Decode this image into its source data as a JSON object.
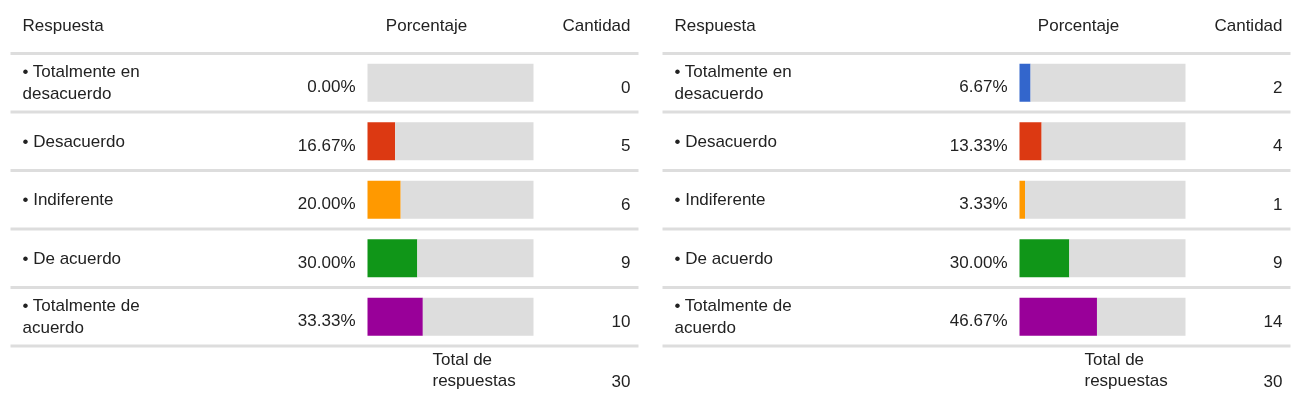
{
  "chart_data": [
    {
      "type": "bar",
      "orientation": "horizontal",
      "stacked": true,
      "ylabel": "Respuesta",
      "xlabel": "Porcentaje",
      "xlim": [
        0,
        100
      ],
      "tick_labels": false,
      "categories": [
        "• Totalmente en desacuerdo",
        "• Desacuerdo",
        "• Indiferente",
        "• De acuerdo",
        "• Totalmente de acuerdo"
      ],
      "series": [
        {
          "colors": [
            "#3366cc",
            "#dc3912",
            "#ff9900",
            "#109618",
            "#990099"
          ],
          "values": [
            0,
            16.67,
            20,
            30,
            33.33
          ],
          "value_labels": [
            "0.00%",
            "16.67%",
            "20.00%",
            "30.00%",
            "33.33%"
          ]
        },
        {
          "color": "#dddddd",
          "values": [
            100,
            83.33,
            80,
            70,
            66.67
          ]
        }
      ],
      "annotations": [
        "Cantidad",
        "0",
        "5",
        "6",
        "9",
        "10",
        "Total de respuestas",
        "30"
      ]
    },
    {
      "type": "bar",
      "orientation": "horizontal",
      "stacked": true,
      "ylabel": "Respuesta",
      "xlabel": "Porcentaje",
      "xlim": [
        0,
        100
      ],
      "tick_labels": false,
      "categories": [
        "• Totalmente en desacuerdo",
        "• Desacuerdo",
        "• Indiferente",
        "• De acuerdo",
        "• Totalmente de acuerdo"
      ],
      "series": [
        {
          "colors": [
            "#3366cc",
            "#dc3912",
            "#ff9900",
            "#109618",
            "#990099"
          ],
          "values": [
            6.67,
            13.33,
            3.33,
            30,
            46.67
          ],
          "value_labels": [
            "6.67%",
            "13.33%",
            "3.33%",
            "30.00%",
            "46.67%"
          ]
        },
        {
          "color": "#dddddd",
          "values": [
            93.33,
            86.67,
            96.67,
            70,
            53.33
          ]
        }
      ],
      "annotations": [
        "Cantidad",
        "2",
        "4",
        "1",
        "9",
        "14",
        "Total de respuestas",
        "30"
      ]
    }
  ]
}
